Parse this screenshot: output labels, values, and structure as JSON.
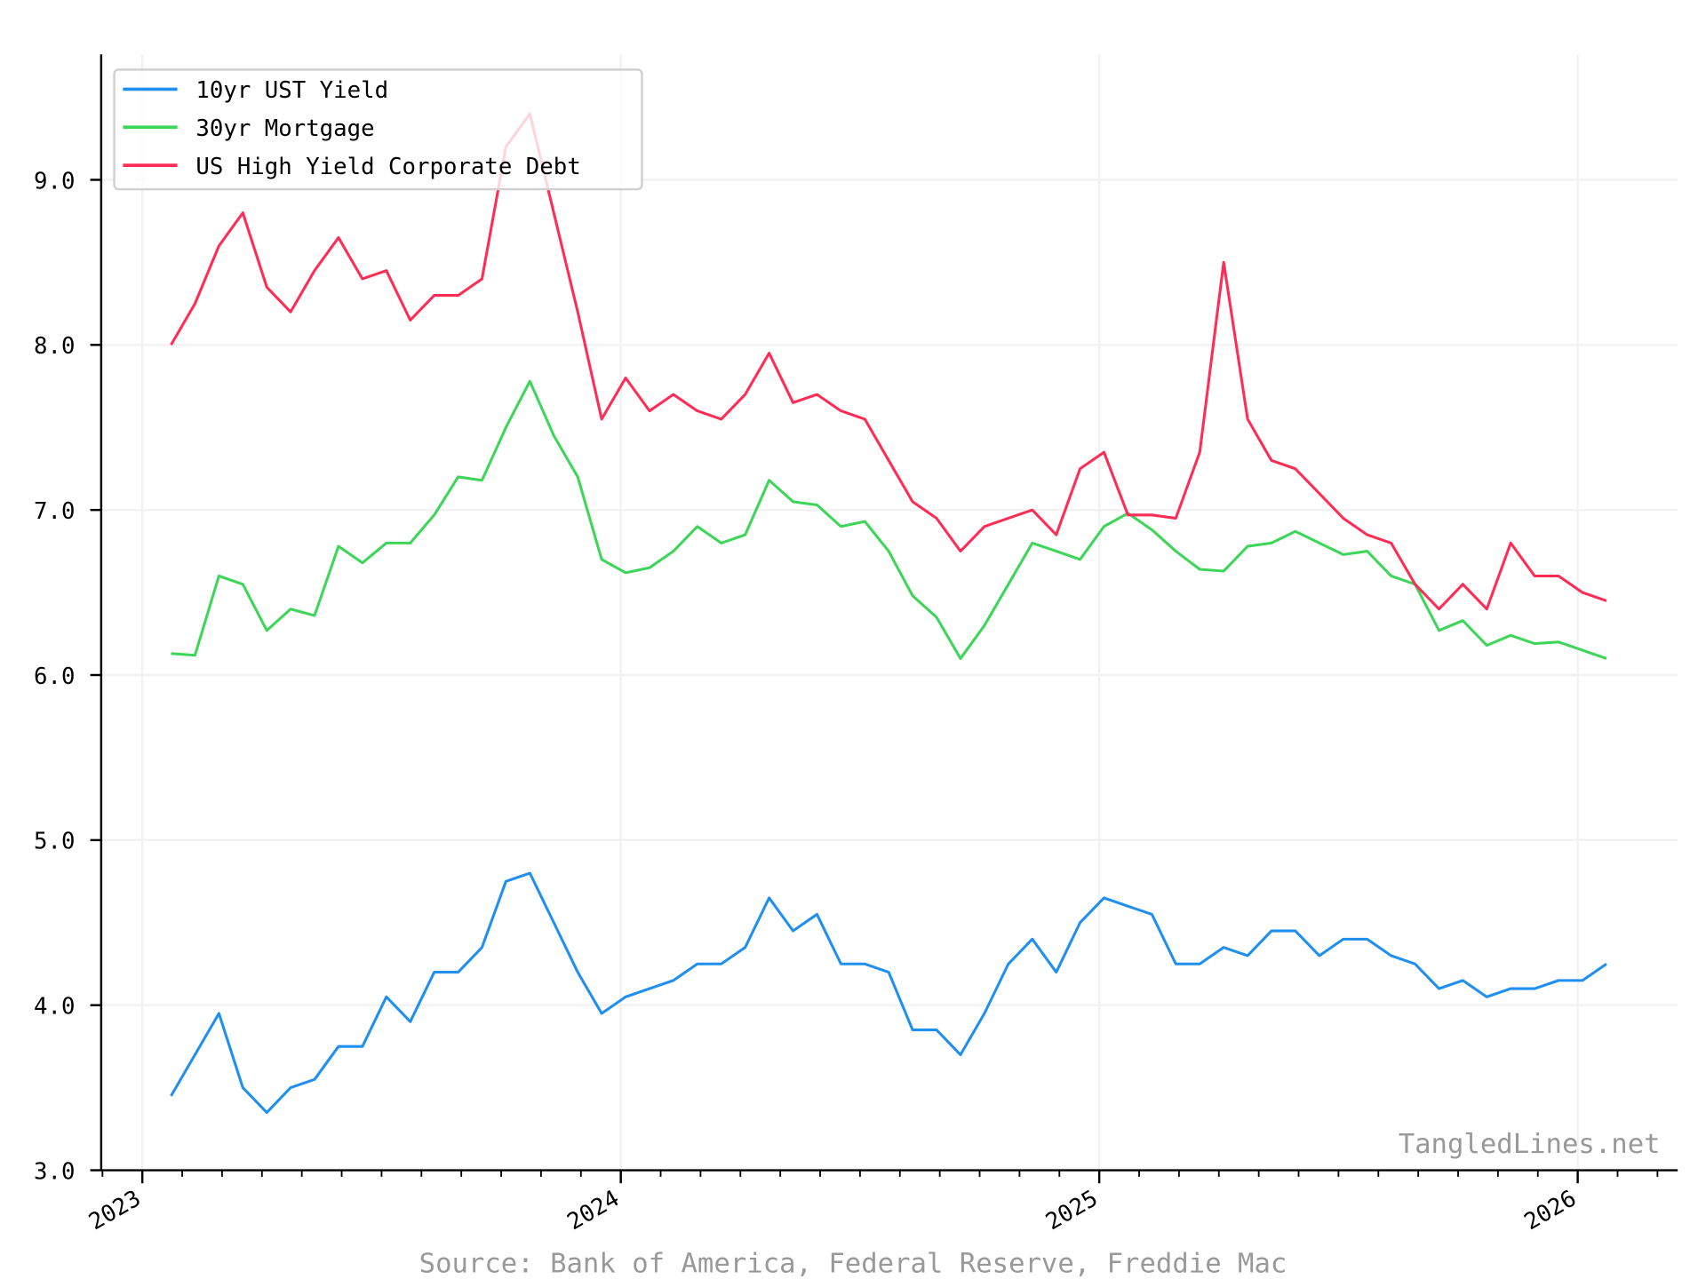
{
  "chart_data": {
    "type": "line",
    "title": "",
    "xlabel": "",
    "ylabel": "",
    "xlim": [
      2022.914,
      2026.209
    ],
    "ylim": [
      3.0,
      9.76
    ],
    "grid": true,
    "legend_position": "top-left",
    "x_ticks": [
      2023,
      2024,
      2025,
      2026
    ],
    "x_tick_labels": [
      "2023",
      "2024",
      "2025",
      "2026"
    ],
    "y_ticks": [
      3.0,
      4.0,
      5.0,
      6.0,
      7.0,
      8.0,
      9.0
    ],
    "y_tick_labels": [
      "3.0",
      "4.0",
      "5.0",
      "6.0",
      "7.0",
      "8.0",
      "9.0"
    ],
    "x": [
      2023.06,
      2023.11,
      2023.16,
      2023.21,
      2023.26,
      2023.31,
      2023.36,
      2023.41,
      2023.46,
      2023.51,
      2023.56,
      2023.61,
      2023.66,
      2023.71,
      2023.76,
      2023.81,
      2023.86,
      2023.91,
      2023.96,
      2024.01,
      2024.06,
      2024.11,
      2024.16,
      2024.21,
      2024.26,
      2024.31,
      2024.36,
      2024.41,
      2024.46,
      2024.51,
      2024.56,
      2024.61,
      2024.66,
      2024.71,
      2024.76,
      2024.81,
      2024.86,
      2024.91,
      2024.96,
      2025.01,
      2025.06,
      2025.11,
      2025.16,
      2025.21,
      2025.26,
      2025.31,
      2025.36,
      2025.41,
      2025.46,
      2025.51,
      2025.56,
      2025.61,
      2025.66,
      2025.71,
      2025.76,
      2025.81,
      2025.86,
      2025.91,
      2025.96,
      2026.01,
      2026.06
    ],
    "series": [
      {
        "name": "10yr UST Yield",
        "color": "#1f8ff0",
        "values": [
          3.45,
          3.7,
          3.95,
          3.5,
          3.35,
          3.5,
          3.55,
          3.75,
          3.75,
          4.05,
          3.9,
          4.2,
          4.2,
          4.35,
          4.75,
          4.8,
          4.5,
          4.2,
          3.95,
          4.05,
          4.1,
          4.15,
          4.25,
          4.25,
          4.35,
          4.65,
          4.45,
          4.55,
          4.25,
          4.25,
          4.2,
          3.85,
          3.85,
          3.7,
          3.95,
          4.25,
          4.4,
          4.2,
          4.5,
          4.65,
          4.6,
          4.55,
          4.25,
          4.25,
          4.35,
          4.3,
          4.45,
          4.45,
          4.3,
          4.4,
          4.4,
          4.3,
          4.25,
          4.1,
          4.15,
          4.05,
          4.1,
          4.1,
          4.15,
          4.15,
          4.25
        ]
      },
      {
        "name": "30yr Mortgage",
        "color": "#3ed65a",
        "values": [
          6.13,
          6.12,
          6.6,
          6.55,
          6.27,
          6.4,
          6.36,
          6.78,
          6.68,
          6.8,
          6.8,
          6.97,
          7.2,
          7.18,
          7.5,
          7.78,
          7.45,
          7.2,
          6.7,
          6.62,
          6.65,
          6.75,
          6.9,
          6.8,
          6.85,
          7.18,
          7.05,
          7.03,
          6.9,
          6.93,
          6.75,
          6.48,
          6.35,
          6.1,
          6.3,
          6.55,
          6.8,
          6.75,
          6.7,
          6.9,
          6.98,
          6.88,
          6.75,
          6.64,
          6.63,
          6.78,
          6.8,
          6.87,
          6.8,
          6.73,
          6.75,
          6.6,
          6.55,
          6.27,
          6.33,
          6.18,
          6.24,
          6.19,
          6.2,
          6.15,
          6.1
        ]
      },
      {
        "name": "US High Yield Corporate Debt",
        "color": "#ff2d55",
        "values": [
          8.0,
          8.25,
          8.6,
          8.8,
          8.35,
          8.2,
          8.45,
          8.65,
          8.4,
          8.45,
          8.15,
          8.3,
          8.3,
          8.4,
          9.2,
          9.4,
          8.8,
          8.2,
          7.55,
          7.8,
          7.6,
          7.7,
          7.6,
          7.55,
          7.7,
          7.95,
          7.65,
          7.7,
          7.6,
          7.55,
          7.3,
          7.05,
          6.95,
          6.75,
          6.9,
          6.95,
          7.0,
          6.85,
          7.25,
          7.35,
          6.97,
          6.97,
          6.95,
          7.35,
          8.5,
          7.55,
          7.3,
          7.25,
          7.1,
          6.95,
          6.85,
          6.8,
          6.55,
          6.4,
          6.55,
          6.4,
          6.8,
          6.6,
          6.6,
          6.5,
          6.45
        ]
      }
    ],
    "watermark": "TangledLines.net",
    "source": "Source: Bank of America, Federal Reserve, Freddie Mac"
  }
}
